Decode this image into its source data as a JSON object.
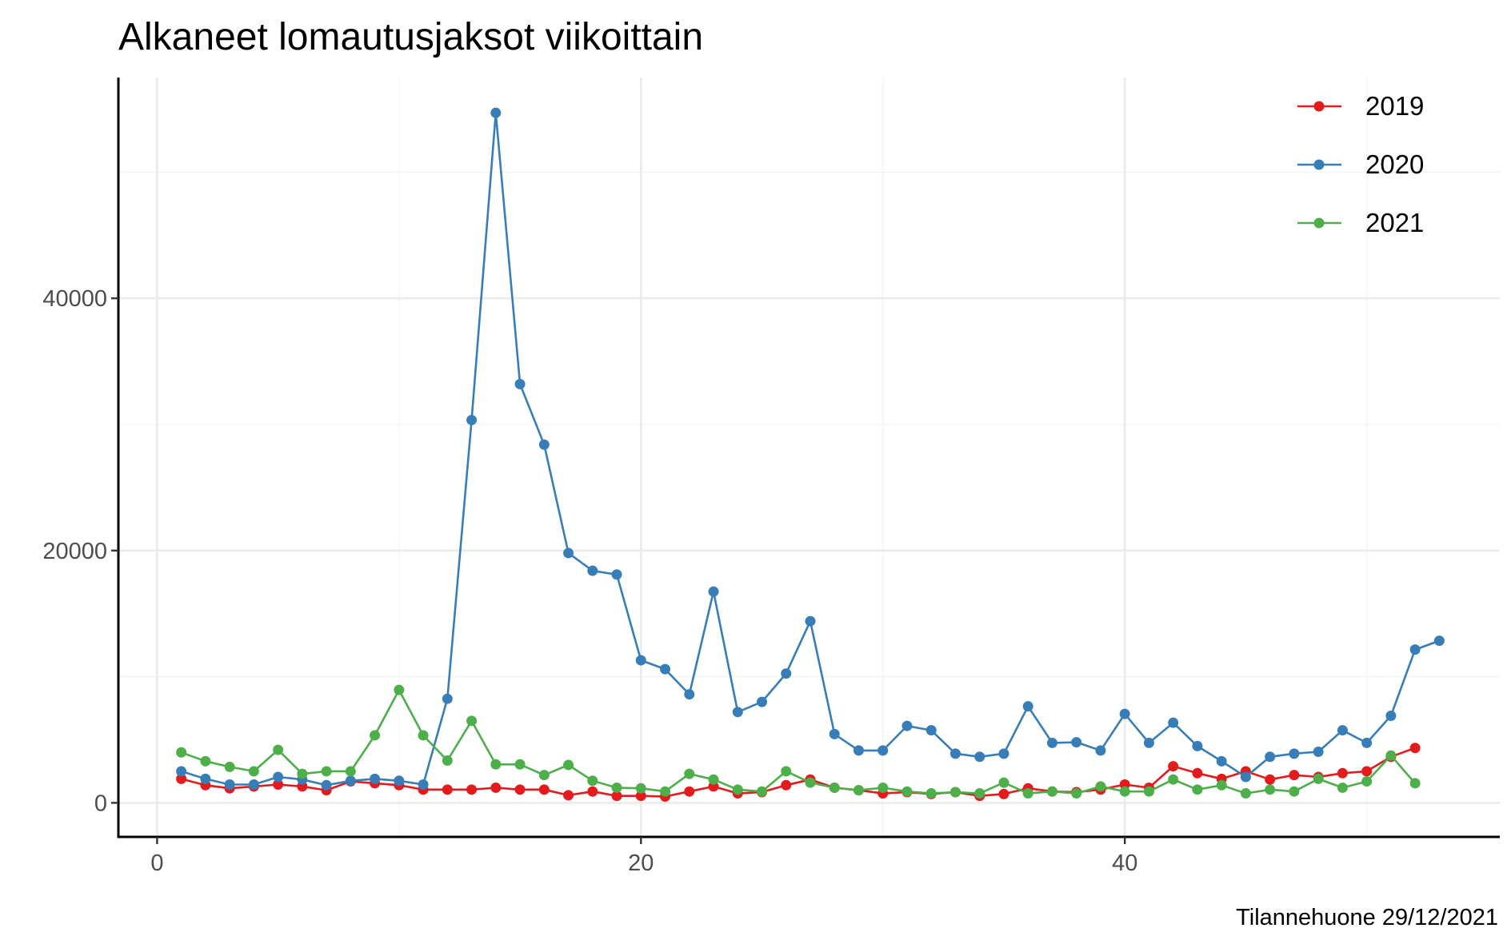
{
  "chart_data": {
    "type": "line",
    "title": "Alkaneet lomautusjaksot viikoittain",
    "caption": "Tilannehuone 29/12/2021",
    "xlabel": "",
    "ylabel": "",
    "xlim": [
      -1.6,
      55.5
    ],
    "ylim": [
      -2700,
      57500
    ],
    "x_ticks": [
      0,
      20,
      40
    ],
    "x_tick_labels": [
      "0",
      "20",
      "40"
    ],
    "y_ticks": [
      0,
      20000,
      40000
    ],
    "y_tick_labels": [
      "0",
      "20000",
      "40000"
    ],
    "grid": true,
    "legend_position": "top-right",
    "series": [
      {
        "name": "2019",
        "color": "#e41a1c",
        "x": [
          1,
          2,
          3,
          4,
          5,
          6,
          7,
          8,
          9,
          10,
          11,
          12,
          13,
          14,
          15,
          16,
          17,
          18,
          19,
          20,
          21,
          22,
          23,
          24,
          25,
          26,
          27,
          28,
          29,
          30,
          31,
          32,
          33,
          34,
          35,
          36,
          37,
          38,
          39,
          40,
          41,
          42,
          43,
          44,
          45,
          46,
          47,
          48,
          49,
          50,
          51,
          52
        ],
        "values": [
          1900,
          1400,
          1150,
          1300,
          1450,
          1300,
          1000,
          1700,
          1550,
          1400,
          1050,
          1050,
          1050,
          1200,
          1050,
          1050,
          600,
          900,
          550,
          550,
          500,
          900,
          1300,
          750,
          850,
          1400,
          1850,
          1200,
          1000,
          750,
          850,
          700,
          850,
          550,
          700,
          1150,
          900,
          850,
          1050,
          1450,
          1200,
          2900,
          2350,
          1900,
          2500,
          1850,
          2200,
          2050,
          2350,
          2500,
          3650,
          4350
        ]
      },
      {
        "name": "2020",
        "color": "#377eb8",
        "x": [
          1,
          2,
          3,
          4,
          5,
          6,
          7,
          8,
          9,
          10,
          11,
          12,
          13,
          14,
          15,
          16,
          17,
          18,
          19,
          20,
          21,
          22,
          23,
          24,
          25,
          26,
          27,
          28,
          29,
          30,
          31,
          32,
          33,
          34,
          35,
          36,
          37,
          38,
          39,
          40,
          41,
          42,
          43,
          44,
          45,
          46,
          47,
          48,
          49,
          50,
          51,
          52,
          53
        ],
        "values": [
          2500,
          1900,
          1450,
          1450,
          2050,
          1850,
          1400,
          1750,
          1900,
          1750,
          1450,
          8250,
          30350,
          54700,
          33200,
          28400,
          19800,
          18400,
          18100,
          11300,
          10600,
          8600,
          16750,
          7200,
          8000,
          10250,
          14400,
          5450,
          4150,
          4150,
          6100,
          5750,
          3900,
          3650,
          3900,
          7650,
          4750,
          4800,
          4150,
          7050,
          4750,
          6350,
          4500,
          3300,
          2050,
          3650,
          3900,
          4050,
          5750,
          4750,
          6900,
          12150,
          12850
        ]
      },
      {
        "name": "2021",
        "color": "#4daf4a",
        "x": [
          1,
          2,
          3,
          4,
          5,
          6,
          7,
          8,
          9,
          10,
          11,
          12,
          13,
          14,
          15,
          16,
          17,
          18,
          19,
          20,
          21,
          22,
          23,
          24,
          25,
          26,
          27,
          28,
          29,
          30,
          31,
          32,
          33,
          34,
          35,
          36,
          37,
          38,
          39,
          40,
          41,
          42,
          43,
          44,
          45,
          46,
          47,
          48,
          49,
          50,
          51,
          52
        ],
        "values": [
          4000,
          3300,
          2850,
          2500,
          4200,
          2300,
          2500,
          2500,
          5350,
          8950,
          5350,
          3350,
          6500,
          3050,
          3050,
          2200,
          3000,
          1750,
          1200,
          1150,
          900,
          2300,
          1850,
          1050,
          900,
          2500,
          1600,
          1200,
          1000,
          1200,
          900,
          750,
          850,
          750,
          1600,
          750,
          900,
          750,
          1300,
          900,
          900,
          1850,
          1050,
          1400,
          750,
          1050,
          900,
          1900,
          1200,
          1700,
          3750,
          1550
        ]
      }
    ]
  }
}
